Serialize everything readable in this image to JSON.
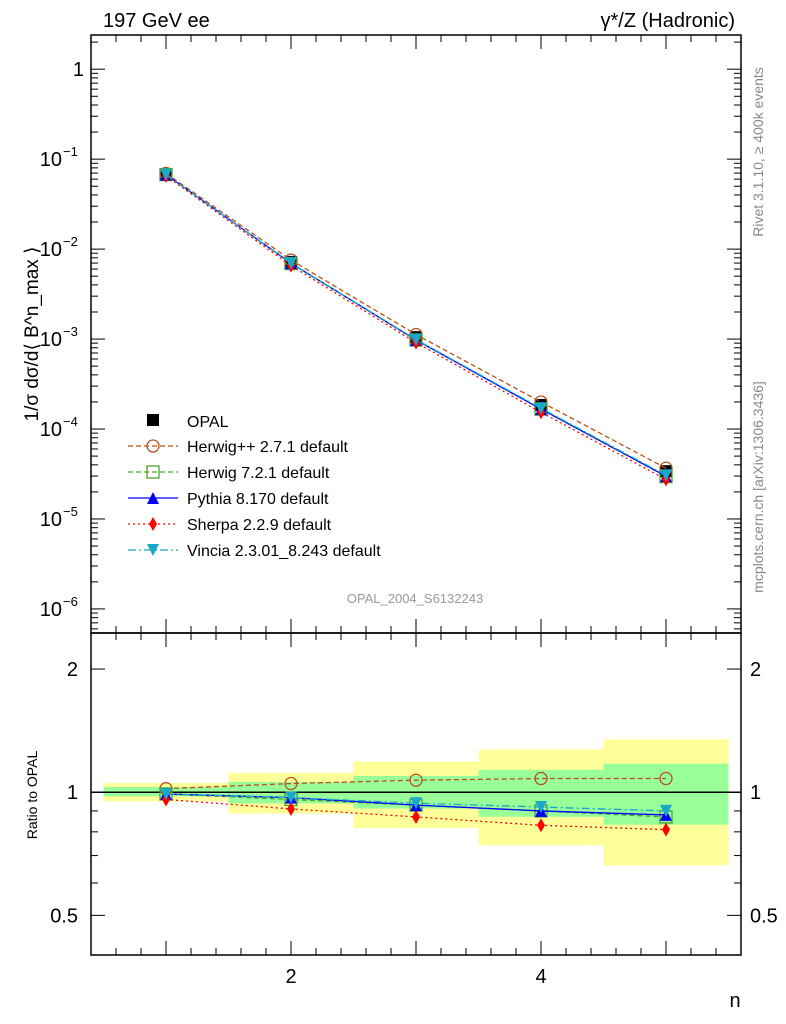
{
  "header": {
    "left": "197 GeV ee",
    "right": "γ*/Z (Hadronic)"
  },
  "side": {
    "top": "Rivet 3.1.10, ≥ 400k events",
    "bottom": "mcplots.cern.ch [arXiv:1306.3436]"
  },
  "watermark": "OPAL_2004_S6132243",
  "chart_data": [
    {
      "type": "line",
      "title": "197 GeV ee",
      "ylabel": "1/σ dσ/d⟨ B^n_max ⟩",
      "yscale": "log",
      "ylim": [
        5.4e-07,
        2.4
      ],
      "xlim": [
        0.4,
        5.6
      ],
      "yticks": [
        {
          "v": 1,
          "label": "1"
        },
        {
          "v": 0.1,
          "label": "10",
          "exp": "−1"
        },
        {
          "v": 0.01,
          "label": "10",
          "exp": "−2"
        },
        {
          "v": 0.001,
          "label": "10",
          "exp": "−3"
        },
        {
          "v": 0.0001,
          "label": "10",
          "exp": "−4"
        },
        {
          "v": 1e-05,
          "label": "10",
          "exp": "−5"
        },
        {
          "v": 1e-06,
          "label": "10",
          "exp": "−6"
        }
      ],
      "x": [
        1,
        2,
        3,
        4,
        5
      ],
      "data": {
        "name": "OPAL",
        "values": [
          0.068,
          0.0072,
          0.00105,
          0.000185,
          3.4e-05
        ]
      },
      "legend_position": "bottom-left"
    },
    {
      "type": "line",
      "ylabel": "Ratio to OPAL",
      "xlabel": "n",
      "yscale": "log",
      "ylim": [
        0.4,
        2.45
      ],
      "xlim": [
        0.4,
        5.6
      ],
      "yticks": [
        {
          "v": 2,
          "label": "2"
        },
        {
          "v": 1,
          "label": "1"
        },
        {
          "v": 0.5,
          "label": "0.5"
        }
      ],
      "xticks": [
        {
          "v": 2,
          "label": "2"
        },
        {
          "v": 4,
          "label": "4"
        }
      ],
      "bins": [
        [
          0.5,
          1.5
        ],
        [
          1.5,
          2.5
        ],
        [
          2.5,
          3.5
        ],
        [
          3.5,
          4.5
        ],
        [
          4.5,
          5.5
        ]
      ],
      "band_total": [
        [
          0.95,
          1.053
        ],
        [
          0.887,
          1.115
        ],
        [
          0.818,
          1.188
        ],
        [
          0.742,
          1.272
        ],
        [
          0.662,
          1.347
        ]
      ],
      "band_stat": [
        [
          0.977,
          1.03
        ],
        [
          0.939,
          1.059
        ],
        [
          0.912,
          1.096
        ],
        [
          0.871,
          1.134
        ],
        [
          0.833,
          1.174
        ]
      ]
    }
  ],
  "series": [
    {
      "name": "Herwig++ 2.7.1 default",
      "color": "#b5521b",
      "dash": "5,3",
      "marker": "circle-open",
      "ratio": [
        1.02,
        1.05,
        1.07,
        1.08,
        1.08
      ]
    },
    {
      "name": "Herwig 7.2.1 default",
      "color": "#4aa02c",
      "dash": "5,3",
      "marker": "square-open",
      "ratio": [
        0.99,
        0.96,
        0.93,
        0.9,
        0.87
      ]
    },
    {
      "name": "Pythia 8.170 default",
      "color": "#0000ff",
      "dash": "",
      "marker": "triangle-up",
      "ratio": [
        0.99,
        0.97,
        0.93,
        0.9,
        0.88
      ]
    },
    {
      "name": "Sherpa 2.2.9 default",
      "color": "#ff0000",
      "dash": "2,3",
      "marker": "diamond",
      "ratio": [
        0.96,
        0.91,
        0.87,
        0.83,
        0.81
      ]
    },
    {
      "name": "Vincia 2.3.01_8.243 default",
      "color": "#1aa9c8",
      "dash": "8,3,2,3",
      "marker": "triangle-down",
      "ratio": [
        0.99,
        0.97,
        0.94,
        0.92,
        0.9
      ]
    }
  ]
}
